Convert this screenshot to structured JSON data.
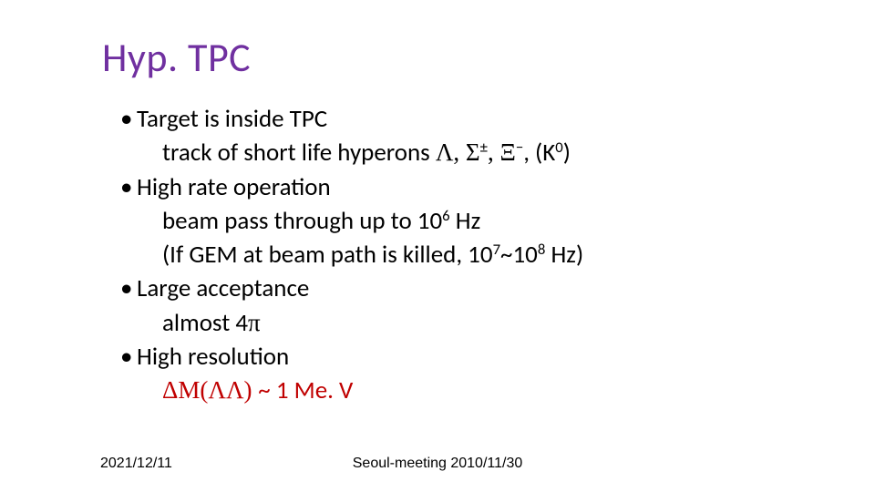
{
  "title": "Hyp. TPC",
  "colors": {
    "title": "#7030a0",
    "text": "#000000",
    "accent_red": "#c00000",
    "background": "#ffffff"
  },
  "typography": {
    "title_fontsize_pt": 33,
    "body_fontsize_pt": 20,
    "footer_fontsize_pt": 12,
    "title_font": "Calibri",
    "body_font": "Calibri",
    "symbol_font": "Symbol"
  },
  "bullets": [
    {
      "label": "Target is inside TPC",
      "subs": [
        {
          "pre": "track of short life hyperons   ",
          "sym1": "Λ, Σ",
          "sup1": "±",
          "sym2": ", Ξ",
          "sup2": "−",
          "post1": ", (K",
          "sup3": "0",
          "post2": ")"
        }
      ]
    },
    {
      "label": "High rate operation",
      "subs": [
        {
          "pre": "beam pass through up to 10",
          "sup1": "6",
          "post1": " Hz"
        },
        {
          "pre": "(If GEM at beam path is killed, 10",
          "sup1": "7",
          "mid": "~10",
          "sup2": "8",
          "post1": " Hz)"
        }
      ]
    },
    {
      "label": "Large acceptance",
      "subs": [
        {
          "pre": "almost 4",
          "sym1": "π"
        }
      ]
    },
    {
      "label": "High resolution",
      "subs": [
        {
          "sym1": "ΔM(ΛΛ) ",
          "post1": "~ 1 Me. V",
          "last": true
        }
      ]
    }
  ],
  "footer": {
    "left": "2021/12/11",
    "center": "Seoul-meeting 2010/11/30"
  }
}
